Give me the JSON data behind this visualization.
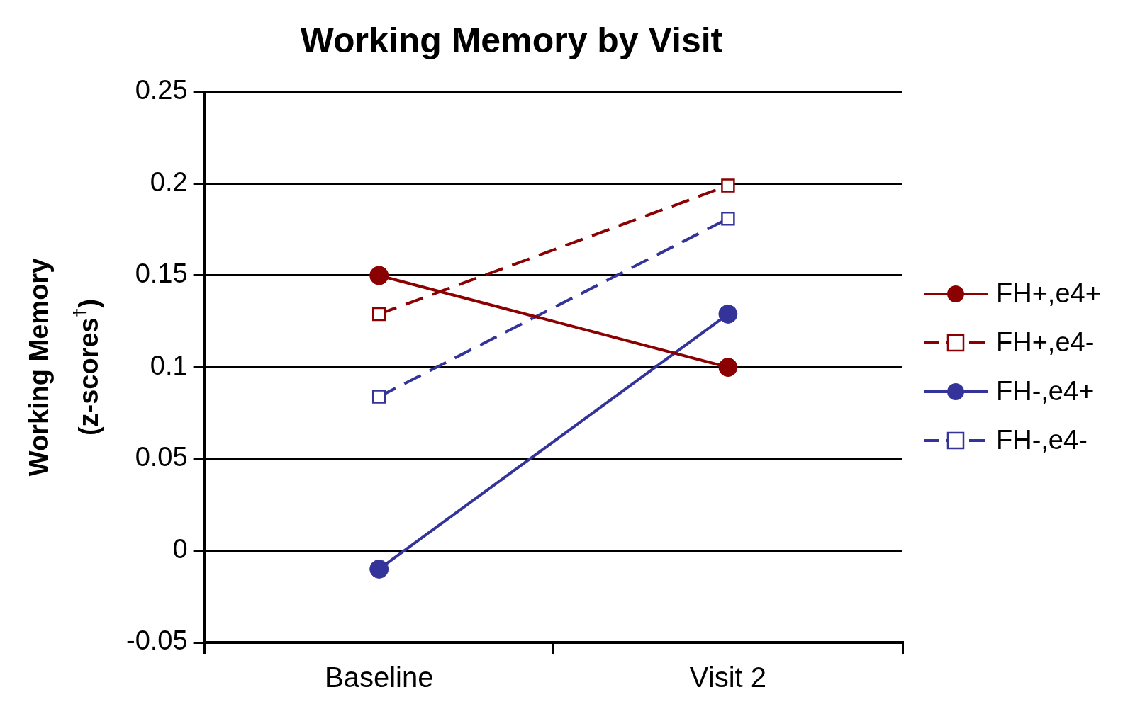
{
  "chart_data": {
    "type": "line",
    "title": "Working Memory by Visit",
    "ylabel": "Working Memory\n(z-scores$^{†}$)",
    "categories": [
      "Baseline",
      "Visit 2"
    ],
    "series": [
      {
        "name": "FH+,e4+",
        "color": "#8b0000",
        "values": [
          0.15,
          0.1
        ],
        "marker": "circle",
        "line_style": "solid"
      },
      {
        "name": "FH+,e4-",
        "color": "#8b0000",
        "values": [
          0.129,
          0.199
        ],
        "marker": "square",
        "line_style": "dashed"
      },
      {
        "name": "FH-,e4+",
        "color": "#333399",
        "values": [
          -0.01,
          0.129
        ],
        "marker": "circle",
        "line_style": "solid"
      },
      {
        "name": "FH-,e4-",
        "color": "#333399",
        "values": [
          0.084,
          0.181
        ],
        "marker": "square",
        "line_style": "dashed"
      }
    ],
    "ylim": [
      -0.05,
      0.25
    ],
    "yticks": [
      -0.05,
      0,
      0.05,
      0.1,
      0.15,
      0.2,
      0.25
    ],
    "grid": "y",
    "legend": "right"
  }
}
